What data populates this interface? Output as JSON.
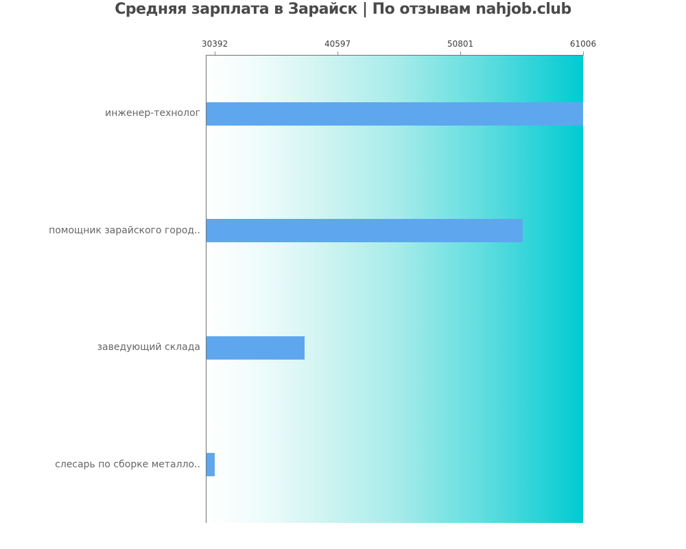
{
  "title": "Средняя зарплата в Зарайск | По отзывам nahjob.club",
  "chart_data": {
    "type": "bar",
    "orientation": "horizontal",
    "title": "Средняя зарплата в Зарайск | По отзывам nahjob.club",
    "categories": [
      "инженер-технолог",
      "помощник зарайского город..",
      "заведующий склада",
      "слесарь по сборке металло.."
    ],
    "values": [
      61006,
      56000,
      37850,
      30392
    ],
    "x_ticks": [
      30392,
      40597,
      50801,
      61006
    ],
    "xlim": [
      29700,
      61006
    ],
    "xlabel": "",
    "ylabel": "",
    "grid": false,
    "legend_position": "none",
    "bar_color": "#5ea7ee",
    "plot_gradient_start": "#ffffff",
    "plot_gradient_end": "#00cbd2",
    "axis_color": "#6f6f6f",
    "tick_label_color": "#3c3c3c",
    "category_label_color": "#666666",
    "title_color": "#4a4a4a"
  }
}
